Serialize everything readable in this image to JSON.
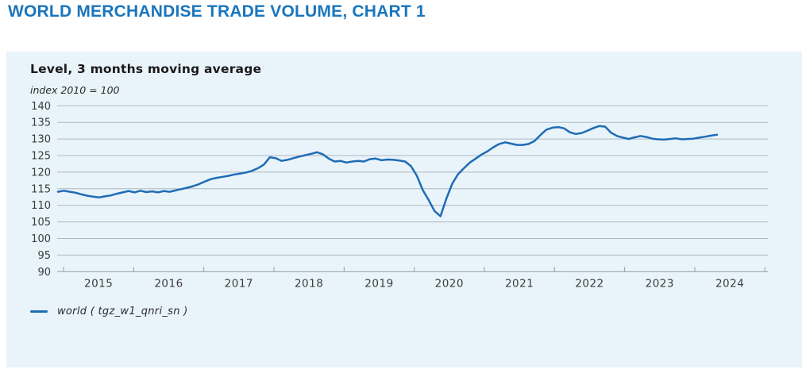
{
  "page": {
    "title": "WORLD MERCHANDISE TRADE VOLUME, CHART 1"
  },
  "panel": {
    "title": "Level, 3 months moving average",
    "unit_label": "index 2010 = 100",
    "legend": {
      "series_label": "world  ( tgz_w1_qnri_sn )"
    }
  },
  "colors": {
    "page_title": "#1a75bc",
    "panel_bg": "#e9f3fa",
    "line": "#1e6cb5",
    "gridline": "#adb9c2",
    "axis": "#8f9ea8",
    "tick_text": "#3c3c3c"
  },
  "chart_data": {
    "type": "line",
    "title": "Level, 3 months moving average",
    "ylabel": "index 2010 = 100",
    "ylim": [
      90,
      140
    ],
    "yticks": [
      140,
      135,
      130,
      125,
      120,
      115,
      110,
      105,
      100,
      95,
      90
    ],
    "x_years": [
      2015,
      2016,
      2017,
      2018,
      2019,
      2020,
      2021,
      2022,
      2023,
      2024
    ],
    "frequency": "monthly",
    "start_month": "2015-01",
    "end_month": "2024-05",
    "grid": true,
    "legend_position": "bottom-left",
    "series": [
      {
        "name": "world  ( tgz_w1_qnri_sn )",
        "color": "#1e6cb5",
        "values": [
          114.1,
          114.4,
          114.1,
          113.8,
          113.3,
          112.9,
          112.6,
          112.4,
          112.7,
          113.0,
          113.5,
          113.9,
          114.3,
          113.9,
          114.4,
          114.0,
          114.2,
          113.9,
          114.3,
          114.1,
          114.5,
          114.9,
          115.3,
          115.8,
          116.4,
          117.2,
          117.9,
          118.3,
          118.6,
          118.9,
          119.3,
          119.6,
          119.9,
          120.4,
          121.2,
          122.3,
          124.5,
          124.2,
          123.4,
          123.7,
          124.2,
          124.7,
          125.1,
          125.5,
          126.0,
          125.4,
          124.1,
          123.2,
          123.4,
          122.9,
          123.2,
          123.4,
          123.2,
          123.9,
          124.1,
          123.6,
          123.8,
          123.7,
          123.5,
          123.2,
          121.8,
          118.9,
          114.6,
          111.6,
          108.3,
          106.7,
          112.0,
          116.5,
          119.4,
          121.2,
          122.9,
          124.1,
          125.3,
          126.3,
          127.5,
          128.5,
          129.0,
          128.6,
          128.2,
          128.2,
          128.5,
          129.4,
          131.2,
          132.8,
          133.4,
          133.6,
          133.2,
          132.0,
          131.5,
          131.8,
          132.5,
          133.3,
          133.9,
          133.7,
          131.9,
          130.9,
          130.4,
          130.0,
          130.5,
          130.9,
          130.6,
          130.1,
          129.9,
          129.8,
          130.0,
          130.2,
          129.9,
          130.0,
          130.1,
          130.4,
          130.7,
          131.0,
          131.3
        ]
      }
    ]
  }
}
